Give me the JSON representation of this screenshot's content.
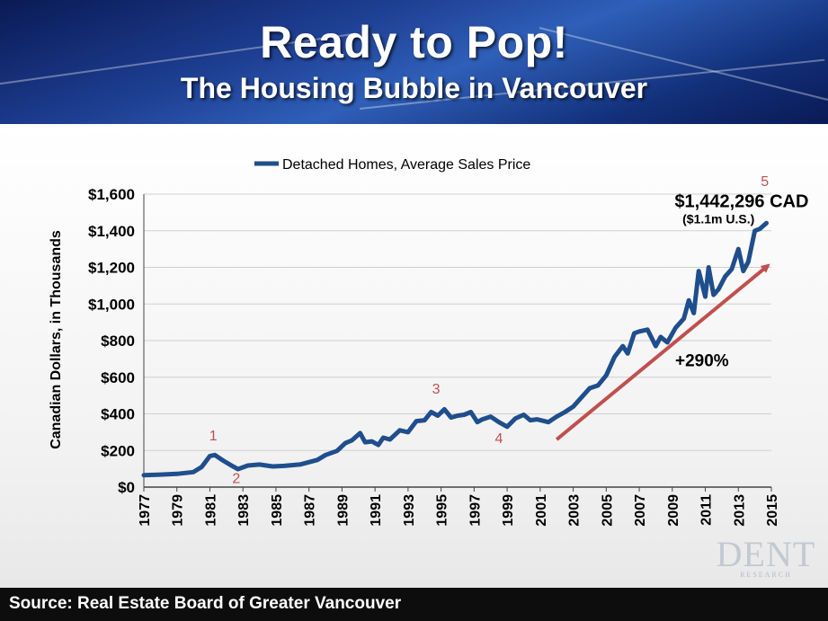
{
  "header": {
    "title": "Ready to Pop!",
    "subtitle": "The Housing Bubble in Vancouver"
  },
  "footer": {
    "source": "Source: Real Estate Board of Greater Vancouver"
  },
  "logo": {
    "text": "DENT",
    "subtext": "RESEARCH"
  },
  "chart_data": {
    "type": "line",
    "ylabel": "Canadian Dollars, in Thousands",
    "xlabel": "",
    "ylim": [
      0,
      1600
    ],
    "yticks": [
      0,
      200,
      400,
      600,
      800,
      1000,
      1200,
      1400,
      1600
    ],
    "ytick_labels": [
      "$0",
      "$200",
      "$400",
      "$600",
      "$800",
      "$1,000",
      "$1,200",
      "$1,400",
      "$1,600"
    ],
    "xlim": [
      1977,
      2015
    ],
    "xticks": [
      1977,
      1979,
      1981,
      1983,
      1985,
      1987,
      1989,
      1991,
      1993,
      1995,
      1997,
      1999,
      2001,
      2003,
      2005,
      2007,
      2009,
      2011,
      2013,
      2015
    ],
    "grid": true,
    "legend": "top-center",
    "series": [
      {
        "name": "Detached Homes, Average Sales Price",
        "color": "#1f4e8c",
        "x": [
          1977,
          1978,
          1979,
          1980,
          1980.5,
          1981,
          1981.3,
          1981.8,
          1982.3,
          1982.7,
          1983.3,
          1984,
          1984.8,
          1985.5,
          1986.5,
          1987.5,
          1988,
          1988.7,
          1989.2,
          1989.6,
          1990.1,
          1990.4,
          1990.8,
          1991.2,
          1991.5,
          1991.9,
          1992.5,
          1993,
          1993.5,
          1994,
          1994.4,
          1994.8,
          1995.2,
          1995.6,
          1996,
          1996.4,
          1996.8,
          1997.2,
          1997.5,
          1998,
          1998.5,
          1999,
          1999.5,
          2000,
          2000.4,
          2000.8,
          2001.5,
          2002,
          2002.5,
          2003,
          2003.5,
          2004,
          2004.5,
          2005,
          2005.5,
          2006,
          2006.3,
          2006.7,
          2007,
          2007.5,
          2008,
          2008.3,
          2008.7,
          2009.2,
          2009.7,
          2010,
          2010.3,
          2010.6,
          2011,
          2011.2,
          2011.5,
          2011.8,
          2012.2,
          2012.6,
          2013,
          2013.3,
          2013.6,
          2014,
          2014.3,
          2014.7
        ],
        "values": [
          65,
          68,
          72,
          82,
          110,
          170,
          175,
          145,
          118,
          98,
          118,
          123,
          113,
          116,
          124,
          148,
          175,
          198,
          240,
          255,
          295,
          245,
          250,
          230,
          270,
          260,
          310,
          300,
          360,
          365,
          410,
          390,
          425,
          380,
          390,
          395,
          410,
          355,
          370,
          385,
          355,
          330,
          375,
          395,
          365,
          370,
          355,
          385,
          410,
          440,
          490,
          540,
          555,
          610,
          710,
          770,
          730,
          840,
          850,
          860,
          770,
          820,
          790,
          870,
          920,
          1020,
          950,
          1180,
          1040,
          1200,
          1050,
          1080,
          1150,
          1190,
          1300,
          1180,
          1230,
          1400,
          1410,
          1442
        ]
      }
    ],
    "annotations": [
      {
        "text": "1",
        "x": 1981.2,
        "y": 255
      },
      {
        "text": "2",
        "x": 1982.6,
        "y": 22
      },
      {
        "text": "3",
        "x": 1994.7,
        "y": 510
      },
      {
        "text": "4",
        "x": 1998.5,
        "y": 240
      },
      {
        "text": "5",
        "x": 2014.6,
        "y": 1645
      },
      {
        "text": "$1,442,296 CAD",
        "x": 2013.2,
        "y": 1530
      },
      {
        "text": "($1.1m U.S.)",
        "x": 2011.8,
        "y": 1440
      },
      {
        "text": "+290%",
        "x": 2010.8,
        "y": 660
      }
    ],
    "trend_arrow": {
      "x0": 2002.0,
      "y0": 260,
      "x1": 2014.8,
      "y1": 1210,
      "color": "#c0504d"
    }
  }
}
